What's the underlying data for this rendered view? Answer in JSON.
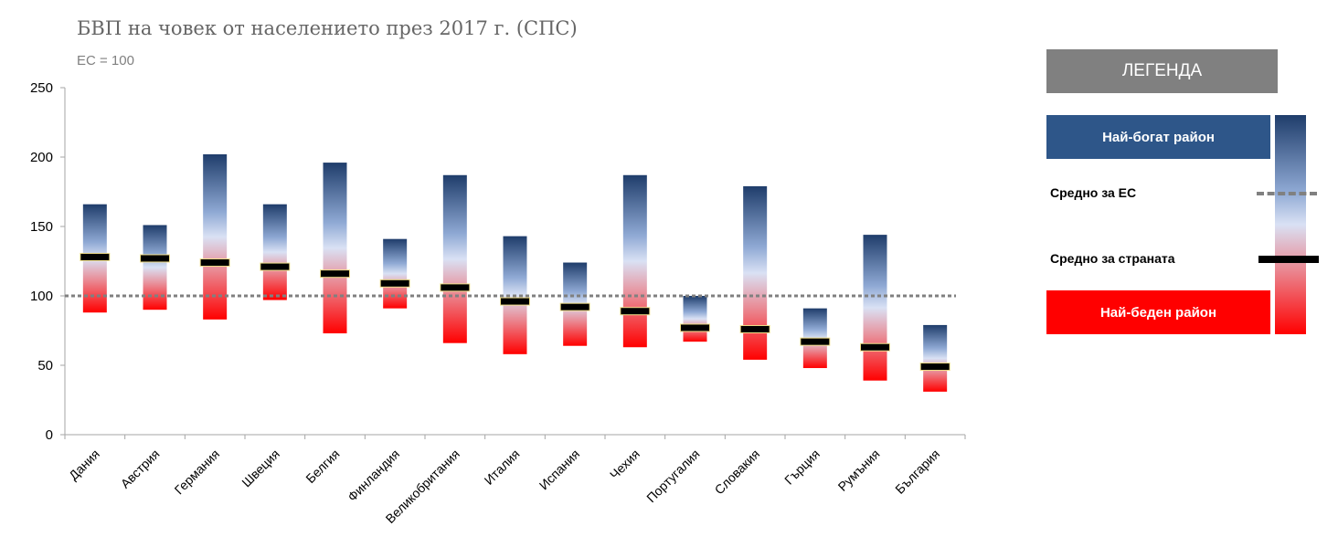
{
  "title": "БВП на човек от населението през 2017 г. (СПС)",
  "subtitle": "ЕС = 100",
  "legend": {
    "header": "ЛЕГЕНДА",
    "richest": "Най-богат район",
    "eu_average": "Средно за ЕС",
    "country_average": "Средно за страната",
    "poorest": "Най-беден район"
  },
  "colors": {
    "rich": "#2e5689",
    "poor": "#ff0000",
    "eu_line": "#808080",
    "country_mark": "#000000",
    "axis": "#a6a6a6"
  },
  "chart_data": {
    "type": "bar",
    "subtype": "floating-range",
    "title": "БВП на човек от населението през 2017 г. (СПС)",
    "subtitle": "ЕС = 100",
    "ylim": [
      0,
      250
    ],
    "yticks": [
      0,
      50,
      100,
      150,
      200,
      250
    ],
    "eu_average": 100,
    "grid": false,
    "legend_position": "right",
    "categories": [
      "Дания",
      "Австрия",
      "Германия",
      "Швеция",
      "Белгия",
      "Финландия",
      "Великобритания",
      "Италия",
      "Испания",
      "Чехия",
      "Португалия",
      "Словакия",
      "Гърция",
      "Румъния",
      "България"
    ],
    "series": [
      {
        "name": "Най-богат район",
        "values": [
          166,
          151,
          202,
          166,
          196,
          141,
          187,
          143,
          124,
          187,
          100,
          179,
          91,
          144,
          79
        ]
      },
      {
        "name": "Средно за страната",
        "values": [
          128,
          127,
          124,
          121,
          116,
          109,
          106,
          96,
          92,
          89,
          77,
          76,
          67,
          63,
          49
        ]
      },
      {
        "name": "Най-беден район",
        "values": [
          88,
          90,
          83,
          97,
          73,
          91,
          66,
          58,
          64,
          63,
          67,
          54,
          48,
          39,
          31
        ]
      }
    ]
  }
}
